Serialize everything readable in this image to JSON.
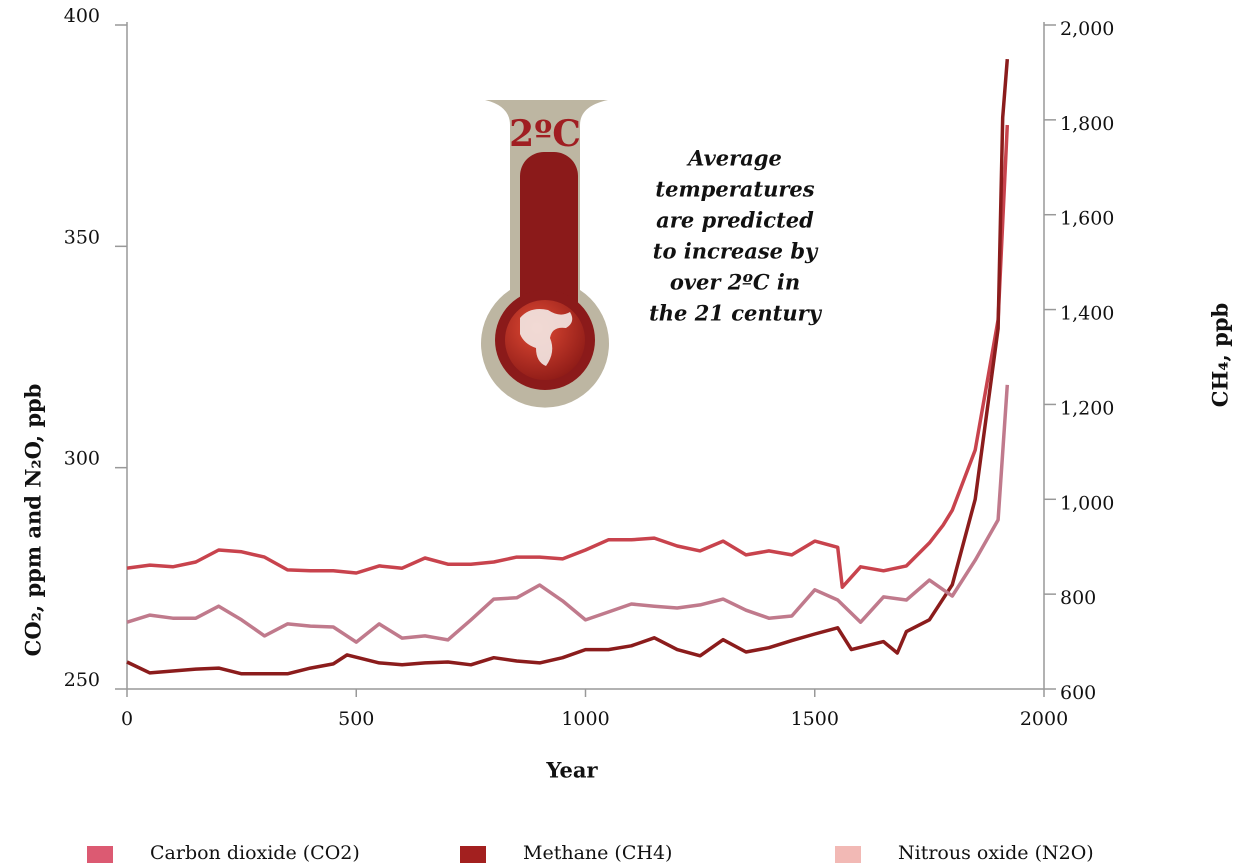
{
  "chart_data": {
    "type": "line",
    "xlabel": "Year",
    "ylabel": "CO₂, ppm and N₂O, ppb",
    "y2label": "CH₄, ppb",
    "xlim": [
      0,
      2000
    ],
    "xticks": [
      0,
      500,
      1000,
      1500,
      2000
    ],
    "ylim": [
      250,
      400
    ],
    "yticks": [
      250,
      300,
      350,
      400
    ],
    "y2lim": [
      600,
      2000
    ],
    "y2ticks": [
      600,
      800,
      {
        "value": 1000,
        "label": "1,000"
      },
      {
        "value": 1200,
        "label": "1,200"
      },
      {
        "value": 1400,
        "label": "1,400"
      },
      {
        "value": 1600,
        "label": "1,600"
      },
      {
        "value": 1800,
        "label": "1,800"
      },
      {
        "value": 2000,
        "label": "2,000"
      }
    ],
    "grid": false,
    "legend": "bottom",
    "thermometer_label": "2ºC",
    "annotation": [
      "Average",
      "temperatures",
      "are predicted",
      "to increase by",
      "over 2ºC in",
      "the 21 century"
    ],
    "series": [
      {
        "name": "Carbon dioxide (CO2)",
        "color": "#c8434d",
        "legend_color": "#dc5a72",
        "x": [
          0,
          50,
          100,
          150,
          200,
          250,
          300,
          350,
          400,
          450,
          500,
          550,
          600,
          650,
          700,
          750,
          800,
          850,
          900,
          950,
          1000,
          1050,
          1100,
          1150,
          1200,
          1250,
          1300,
          1350,
          1400,
          1450,
          1500,
          1550,
          1560,
          1600,
          1650,
          1700,
          1750,
          1780,
          1800,
          1850,
          1900,
          1920
        ],
        "values": [
          277.3,
          278,
          277.6,
          278.7,
          281.4,
          281,
          279.8,
          276.9,
          276.7,
          276.7,
          276.2,
          277.8,
          277.3,
          279.6,
          278.2,
          278.2,
          278.7,
          279.8,
          279.8,
          279.4,
          281.4,
          283.7,
          283.7,
          284.1,
          282.3,
          281.2,
          283.4,
          280.3,
          281.2,
          280.3,
          283.4,
          282,
          273,
          277.6,
          276.7,
          277.8,
          283,
          287,
          290.4,
          304,
          333.4,
          377.4
        ]
      },
      {
        "name": "Methane (CH4)",
        "color": "#8b1c1c",
        "legend_color": "#a3201f",
        "axis": "y2",
        "x": [
          0,
          50,
          100,
          150,
          200,
          250,
          300,
          350,
          400,
          450,
          480,
          550,
          600,
          650,
          700,
          750,
          800,
          850,
          900,
          950,
          1000,
          1050,
          1100,
          1150,
          1200,
          1250,
          1300,
          1350,
          1400,
          1450,
          1500,
          1550,
          1580,
          1650,
          1680,
          1700,
          1750,
          1800,
          1850,
          1900,
          1910,
          1920
        ],
        "values": [
          657,
          634,
          638,
          642,
          644,
          632,
          632,
          632,
          644,
          653,
          672,
          655,
          651,
          655,
          657,
          651,
          666,
          659,
          655,
          666,
          683,
          683,
          691,
          708,
          683,
          670,
          704,
          678,
          687,
          702,
          716,
          729,
          683,
          700,
          676,
          721,
          746,
          820,
          1000,
          1360,
          1805,
          1928
        ]
      },
      {
        "name": "Nitrous oxide (N2O)",
        "color": "#c07a8c",
        "legend_color": "#f2b9b5",
        "x": [
          0,
          50,
          100,
          150,
          200,
          250,
          300,
          350,
          400,
          450,
          500,
          550,
          600,
          650,
          700,
          750,
          800,
          850,
          900,
          950,
          1000,
          1050,
          1100,
          1150,
          1200,
          1250,
          1300,
          1350,
          1400,
          1450,
          1500,
          1550,
          1600,
          1650,
          1700,
          1750,
          1800,
          1850,
          1900,
          1920
        ],
        "values": [
          265.1,
          266.7,
          266,
          266,
          268.7,
          265.6,
          262,
          264.7,
          264.2,
          264,
          260.6,
          264.7,
          261.5,
          262,
          261.1,
          265.6,
          270.3,
          270.6,
          273.5,
          269.9,
          265.6,
          267.4,
          269.2,
          268.7,
          268.3,
          269,
          270.3,
          267.8,
          266,
          266.5,
          272.4,
          270.1,
          265.1,
          270.8,
          270.1,
          274.6,
          271,
          279.1,
          288.2,
          318.7
        ]
      }
    ]
  }
}
